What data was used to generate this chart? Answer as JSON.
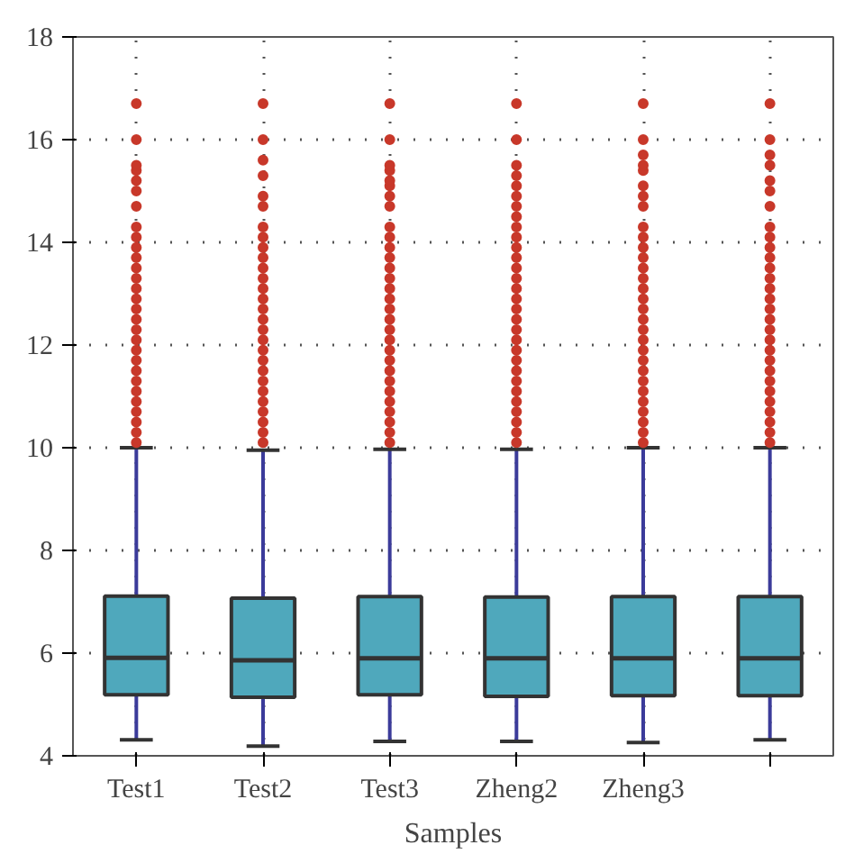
{
  "chart_data": {
    "type": "box",
    "xlabel": "Samples",
    "categories": [
      "Test1",
      "Test2",
      "Test3",
      "Zheng2",
      "Zheng3",
      null
    ],
    "ylim": [
      4,
      18
    ],
    "yticks": [
      4,
      6,
      8,
      10,
      12,
      14,
      16,
      18
    ],
    "grid": true,
    "marker": "circle",
    "series": [
      {
        "color": "#4fa8bc",
        "boxes": [
          {
            "low": 4.31,
            "q1": 5.19,
            "median": 5.91,
            "q3": 7.11,
            "high": 10.0,
            "outliers": [
              10.1,
              10.3,
              10.5,
              10.7,
              10.9,
              11.1,
              11.3,
              11.5,
              11.7,
              11.9,
              12.1,
              12.3,
              12.5,
              12.7,
              12.9,
              13.1,
              13.3,
              13.5,
              13.7,
              13.9,
              14.1,
              14.3,
              14.7,
              15.0,
              15.2,
              15.4,
              15.5,
              16.0,
              16.7
            ]
          },
          {
            "low": 4.19,
            "q1": 5.14,
            "median": 5.86,
            "q3": 7.07,
            "high": 9.95,
            "outliers": [
              10.1,
              10.3,
              10.5,
              10.7,
              10.9,
              11.1,
              11.3,
              11.5,
              11.7,
              11.9,
              12.1,
              12.3,
              12.5,
              12.7,
              12.9,
              13.1,
              13.3,
              13.5,
              13.7,
              13.9,
              14.1,
              14.3,
              14.7,
              14.9,
              15.3,
              15.6,
              16.0,
              16.7
            ]
          },
          {
            "low": 4.28,
            "q1": 5.19,
            "median": 5.9,
            "q3": 7.1,
            "high": 9.97,
            "outliers": [
              10.1,
              10.3,
              10.5,
              10.7,
              10.9,
              11.1,
              11.3,
              11.5,
              11.7,
              11.9,
              12.1,
              12.3,
              12.5,
              12.7,
              12.9,
              13.1,
              13.3,
              13.5,
              13.7,
              13.9,
              14.1,
              14.3,
              14.7,
              14.9,
              15.1,
              15.2,
              15.4,
              15.5,
              16.0,
              16.7
            ]
          },
          {
            "low": 4.28,
            "q1": 5.16,
            "median": 5.9,
            "q3": 7.09,
            "high": 9.97,
            "outliers": [
              10.1,
              10.3,
              10.5,
              10.7,
              10.9,
              11.1,
              11.3,
              11.5,
              11.7,
              11.9,
              12.1,
              12.3,
              12.5,
              12.7,
              12.9,
              13.1,
              13.3,
              13.5,
              13.7,
              13.9,
              14.1,
              14.3,
              14.5,
              14.7,
              14.9,
              15.1,
              15.3,
              15.5,
              16.0,
              16.7
            ]
          },
          {
            "low": 4.26,
            "q1": 5.17,
            "median": 5.9,
            "q3": 7.1,
            "high": 10.0,
            "outliers": [
              10.1,
              10.3,
              10.5,
              10.7,
              10.9,
              11.1,
              11.3,
              11.5,
              11.7,
              11.9,
              12.1,
              12.3,
              12.5,
              12.7,
              12.9,
              13.1,
              13.3,
              13.5,
              13.7,
              13.9,
              14.1,
              14.3,
              14.7,
              14.9,
              15.1,
              15.4,
              15.5,
              15.7,
              16.0,
              16.7
            ]
          },
          {
            "low": 4.31,
            "q1": 5.17,
            "median": 5.9,
            "q3": 7.1,
            "high": 10.0,
            "outliers": [
              10.1,
              10.3,
              10.5,
              10.7,
              10.9,
              11.1,
              11.3,
              11.5,
              11.7,
              11.9,
              12.1,
              12.3,
              12.5,
              12.7,
              12.9,
              13.1,
              13.3,
              13.5,
              13.7,
              13.9,
              14.1,
              14.3,
              14.7,
              15.0,
              15.2,
              15.5,
              15.7,
              16.0,
              16.7
            ]
          }
        ]
      }
    ]
  }
}
